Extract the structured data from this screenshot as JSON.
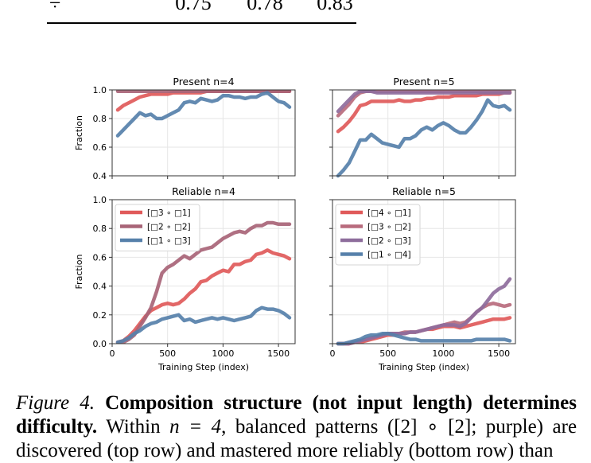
{
  "table_fragment": {
    "symbol": "÷",
    "values": [
      "0.75",
      "0.78",
      "0.83"
    ]
  },
  "chart_data": [
    {
      "type": "line",
      "title": "Present n=4",
      "ylabel": "Fraction",
      "xlabel": "",
      "ylim": [
        0.4,
        1.0
      ],
      "xlim": [
        0,
        1650
      ],
      "yticks": [
        "0.4",
        "0.6",
        "0.8",
        "1.0"
      ],
      "xticks": [],
      "grid": true,
      "series": [
        {
          "name": "[□3 ∘ □1]",
          "color": "#e05a5a",
          "x": [
            50,
            100,
            150,
            200,
            250,
            300,
            350,
            400,
            450,
            500,
            550,
            600,
            650,
            700,
            750,
            800,
            850,
            900,
            950,
            1000,
            1050,
            1100,
            1150,
            1200,
            1250,
            1300,
            1350,
            1400,
            1450,
            1500,
            1550,
            1600
          ],
          "y": [
            0.86,
            0.89,
            0.91,
            0.93,
            0.95,
            0.96,
            0.97,
            0.97,
            0.97,
            0.97,
            0.98,
            0.98,
            0.98,
            0.98,
            0.98,
            0.98,
            0.99,
            0.99,
            0.99,
            0.99,
            0.99,
            0.99,
            0.99,
            0.99,
            0.99,
            0.99,
            0.99,
            0.99,
            0.99,
            0.99,
            0.99,
            0.99
          ]
        },
        {
          "name": "[□2 ∘ □2]",
          "color": "#a86477",
          "x": [
            50,
            100,
            150,
            200,
            250,
            300,
            350,
            400,
            450,
            500,
            550,
            600,
            650,
            700,
            750,
            800,
            850,
            900,
            950,
            1000,
            1050,
            1100,
            1150,
            1200,
            1250,
            1300,
            1350,
            1400,
            1450,
            1500,
            1550,
            1600
          ],
          "y": [
            0.99,
            0.99,
            0.99,
            0.99,
            0.99,
            0.99,
            0.99,
            0.99,
            0.99,
            0.99,
            0.99,
            0.99,
            0.99,
            0.99,
            0.99,
            0.99,
            0.99,
            0.99,
            0.99,
            0.99,
            0.99,
            0.99,
            0.99,
            0.99,
            0.99,
            0.99,
            0.99,
            0.99,
            0.99,
            0.99,
            0.99,
            0.99
          ]
        },
        {
          "name": "[□1 ∘ □3]",
          "color": "#5680aa",
          "x": [
            50,
            100,
            150,
            200,
            250,
            300,
            350,
            400,
            450,
            500,
            550,
            600,
            650,
            700,
            750,
            800,
            850,
            900,
            950,
            1000,
            1050,
            1100,
            1150,
            1200,
            1250,
            1300,
            1350,
            1400,
            1450,
            1500,
            1550,
            1600
          ],
          "y": [
            0.68,
            0.72,
            0.76,
            0.8,
            0.84,
            0.82,
            0.83,
            0.8,
            0.8,
            0.82,
            0.84,
            0.86,
            0.91,
            0.92,
            0.91,
            0.94,
            0.93,
            0.92,
            0.93,
            0.96,
            0.96,
            0.95,
            0.95,
            0.94,
            0.95,
            0.95,
            0.97,
            0.98,
            0.95,
            0.92,
            0.91,
            0.88
          ]
        }
      ]
    },
    {
      "type": "line",
      "title": "Present n=5",
      "ylabel": "",
      "xlabel": "",
      "ylim": [
        0.4,
        1.0
      ],
      "xlim": [
        0,
        1650
      ],
      "yticks": [],
      "xticks": [],
      "grid": true,
      "series": [
        {
          "name": "[□4 ∘ □1]",
          "color": "#e05a5a",
          "x": [
            50,
            100,
            150,
            200,
            250,
            300,
            350,
            400,
            450,
            500,
            550,
            600,
            650,
            700,
            750,
            800,
            850,
            900,
            950,
            1000,
            1050,
            1100,
            1150,
            1200,
            1250,
            1300,
            1350,
            1400,
            1450,
            1500,
            1550,
            1600
          ],
          "y": [
            0.71,
            0.74,
            0.78,
            0.83,
            0.89,
            0.9,
            0.92,
            0.92,
            0.92,
            0.92,
            0.92,
            0.93,
            0.92,
            0.92,
            0.93,
            0.93,
            0.94,
            0.94,
            0.95,
            0.95,
            0.95,
            0.96,
            0.96,
            0.96,
            0.96,
            0.96,
            0.97,
            0.97,
            0.97,
            0.97,
            0.98,
            0.98
          ]
        },
        {
          "name": "[□3 ∘ □2]",
          "color": "#b86b7d",
          "x": [
            50,
            100,
            150,
            200,
            250,
            300,
            350,
            400,
            450,
            500,
            550,
            600,
            650,
            700,
            750,
            800,
            850,
            900,
            950,
            1000,
            1050,
            1100,
            1150,
            1200,
            1250,
            1300,
            1350,
            1400,
            1450,
            1500,
            1550,
            1600
          ],
          "y": [
            0.82,
            0.86,
            0.9,
            0.95,
            0.98,
            0.99,
            0.99,
            0.99,
            0.99,
            0.99,
            0.99,
            0.99,
            0.99,
            0.99,
            0.99,
            0.99,
            0.99,
            0.99,
            0.99,
            0.99,
            0.99,
            0.99,
            0.99,
            0.99,
            0.99,
            0.99,
            0.99,
            0.99,
            0.99,
            0.99,
            0.99,
            0.99
          ]
        },
        {
          "name": "[□2 ∘ □3]",
          "color": "#8e6d9c",
          "x": [
            50,
            100,
            150,
            200,
            250,
            300,
            350,
            400,
            450,
            500,
            550,
            600,
            650,
            700,
            750,
            800,
            850,
            900,
            950,
            1000,
            1050,
            1100,
            1150,
            1200,
            1250,
            1300,
            1350,
            1400,
            1450,
            1500,
            1550,
            1600
          ],
          "y": [
            0.85,
            0.89,
            0.93,
            0.97,
            0.99,
            0.99,
            0.99,
            0.98,
            0.98,
            0.98,
            0.98,
            0.98,
            0.98,
            0.98,
            0.98,
            0.98,
            0.98,
            0.98,
            0.98,
            0.98,
            0.98,
            0.98,
            0.98,
            0.98,
            0.98,
            0.98,
            0.98,
            0.98,
            0.98,
            0.98,
            0.98,
            0.98
          ]
        },
        {
          "name": "[□1 ∘ □4]",
          "color": "#5680aa",
          "x": [
            50,
            100,
            150,
            200,
            250,
            300,
            350,
            400,
            450,
            500,
            550,
            600,
            650,
            700,
            750,
            800,
            850,
            900,
            950,
            1000,
            1050,
            1100,
            1150,
            1200,
            1250,
            1300,
            1350,
            1400,
            1450,
            1500,
            1550,
            1600
          ],
          "y": [
            0.4,
            0.44,
            0.49,
            0.57,
            0.65,
            0.65,
            0.69,
            0.66,
            0.63,
            0.62,
            0.61,
            0.6,
            0.66,
            0.66,
            0.68,
            0.72,
            0.74,
            0.72,
            0.75,
            0.77,
            0.75,
            0.72,
            0.7,
            0.7,
            0.74,
            0.79,
            0.85,
            0.93,
            0.89,
            0.88,
            0.89,
            0.86
          ]
        }
      ]
    },
    {
      "type": "line",
      "title": "Reliable n=4",
      "ylabel": "Fraction",
      "xlabel": "Training Step (index)",
      "ylim": [
        0.0,
        1.0
      ],
      "xlim": [
        0,
        1650
      ],
      "yticks": [
        "0.0",
        "0.2",
        "0.4",
        "0.6",
        "0.8",
        "1.0"
      ],
      "xticks": [
        "0",
        "500",
        "1000",
        "1500"
      ],
      "legend": "top-left",
      "grid": true,
      "series": [
        {
          "name": "[□3 ∘ □1]",
          "color": "#e05a5a",
          "x": [
            50,
            100,
            150,
            200,
            250,
            300,
            350,
            400,
            450,
            500,
            550,
            600,
            650,
            700,
            750,
            800,
            850,
            900,
            950,
            1000,
            1050,
            1100,
            1150,
            1200,
            1250,
            1300,
            1350,
            1400,
            1450,
            1500,
            1550,
            1600
          ],
          "y": [
            0.01,
            0.02,
            0.05,
            0.09,
            0.14,
            0.19,
            0.23,
            0.25,
            0.27,
            0.28,
            0.27,
            0.28,
            0.31,
            0.35,
            0.38,
            0.43,
            0.44,
            0.47,
            0.49,
            0.51,
            0.5,
            0.55,
            0.55,
            0.57,
            0.58,
            0.62,
            0.63,
            0.65,
            0.63,
            0.62,
            0.61,
            0.59
          ]
        },
        {
          "name": "[□2 ∘ □2]",
          "color": "#a86477",
          "x": [
            50,
            100,
            150,
            200,
            250,
            300,
            350,
            400,
            450,
            500,
            550,
            600,
            650,
            700,
            750,
            800,
            850,
            900,
            950,
            1000,
            1050,
            1100,
            1150,
            1200,
            1250,
            1300,
            1350,
            1400,
            1450,
            1500,
            1550,
            1600
          ],
          "y": [
            0.01,
            0.01,
            0.03,
            0.06,
            0.12,
            0.18,
            0.25,
            0.36,
            0.49,
            0.53,
            0.55,
            0.58,
            0.61,
            0.59,
            0.62,
            0.65,
            0.66,
            0.67,
            0.7,
            0.73,
            0.75,
            0.77,
            0.78,
            0.77,
            0.8,
            0.82,
            0.82,
            0.84,
            0.84,
            0.83,
            0.83,
            0.83
          ]
        },
        {
          "name": "[□1 ∘ □3]",
          "color": "#5680aa",
          "x": [
            50,
            100,
            150,
            200,
            250,
            300,
            350,
            400,
            450,
            500,
            550,
            600,
            650,
            700,
            750,
            800,
            850,
            900,
            950,
            1000,
            1050,
            1100,
            1150,
            1200,
            1250,
            1300,
            1350,
            1400,
            1450,
            1500,
            1550,
            1600
          ],
          "y": [
            0.01,
            0.02,
            0.04,
            0.07,
            0.09,
            0.12,
            0.14,
            0.15,
            0.17,
            0.18,
            0.19,
            0.2,
            0.16,
            0.17,
            0.15,
            0.16,
            0.17,
            0.18,
            0.17,
            0.18,
            0.17,
            0.16,
            0.17,
            0.18,
            0.19,
            0.23,
            0.25,
            0.24,
            0.24,
            0.23,
            0.21,
            0.18
          ]
        }
      ]
    },
    {
      "type": "line",
      "title": "Reliable n=5",
      "ylabel": "",
      "xlabel": "Training Step (index)",
      "ylim": [
        0.0,
        1.0
      ],
      "xlim": [
        0,
        1650
      ],
      "yticks": [],
      "xticks": [
        "0",
        "500",
        "1000",
        "1500"
      ],
      "legend": "top-left",
      "grid": true,
      "series": [
        {
          "name": "[□4 ∘ □1]",
          "color": "#e05a5a",
          "x": [
            50,
            100,
            150,
            200,
            250,
            300,
            350,
            400,
            450,
            500,
            550,
            600,
            650,
            700,
            750,
            800,
            850,
            900,
            950,
            1000,
            1050,
            1100,
            1150,
            1200,
            1250,
            1300,
            1350,
            1400,
            1450,
            1500,
            1550,
            1600
          ],
          "y": [
            0.0,
            0.0,
            0.0,
            0.01,
            0.01,
            0.02,
            0.03,
            0.04,
            0.05,
            0.06,
            0.06,
            0.07,
            0.07,
            0.08,
            0.08,
            0.09,
            0.1,
            0.1,
            0.11,
            0.12,
            0.12,
            0.12,
            0.11,
            0.12,
            0.13,
            0.14,
            0.15,
            0.16,
            0.17,
            0.17,
            0.17,
            0.18
          ]
        },
        {
          "name": "[□3 ∘ □2]",
          "color": "#b86b7d",
          "x": [
            50,
            100,
            150,
            200,
            250,
            300,
            350,
            400,
            450,
            500,
            550,
            600,
            650,
            700,
            750,
            800,
            850,
            900,
            950,
            1000,
            1050,
            1100,
            1150,
            1200,
            1250,
            1300,
            1350,
            1400,
            1450,
            1500,
            1550,
            1600
          ],
          "y": [
            0.0,
            0.0,
            0.0,
            0.01,
            0.02,
            0.03,
            0.04,
            0.05,
            0.06,
            0.07,
            0.07,
            0.07,
            0.08,
            0.08,
            0.08,
            0.09,
            0.1,
            0.11,
            0.12,
            0.13,
            0.14,
            0.15,
            0.14,
            0.15,
            0.18,
            0.22,
            0.25,
            0.27,
            0.28,
            0.27,
            0.26,
            0.27
          ]
        },
        {
          "name": "[□2 ∘ □3]",
          "color": "#8e6d9c",
          "x": [
            50,
            100,
            150,
            200,
            250,
            300,
            350,
            400,
            450,
            500,
            550,
            600,
            650,
            700,
            750,
            800,
            850,
            900,
            950,
            1000,
            1050,
            1100,
            1150,
            1200,
            1250,
            1300,
            1350,
            1400,
            1450,
            1500,
            1550,
            1600
          ],
          "y": [
            0.0,
            0.0,
            0.0,
            0.01,
            0.02,
            0.03,
            0.04,
            0.05,
            0.06,
            0.07,
            0.07,
            0.07,
            0.07,
            0.08,
            0.08,
            0.09,
            0.1,
            0.11,
            0.12,
            0.13,
            0.13,
            0.13,
            0.12,
            0.14,
            0.18,
            0.22,
            0.25,
            0.3,
            0.35,
            0.38,
            0.4,
            0.45
          ]
        },
        {
          "name": "[□1 ∘ □4]",
          "color": "#5680aa",
          "x": [
            50,
            100,
            150,
            200,
            250,
            300,
            350,
            400,
            450,
            500,
            550,
            600,
            650,
            700,
            750,
            800,
            850,
            900,
            950,
            1000,
            1050,
            1100,
            1150,
            1200,
            1250,
            1300,
            1350,
            1400,
            1450,
            1500,
            1550,
            1600
          ],
          "y": [
            0.0,
            0.0,
            0.01,
            0.02,
            0.03,
            0.05,
            0.06,
            0.06,
            0.07,
            0.07,
            0.06,
            0.05,
            0.04,
            0.03,
            0.03,
            0.02,
            0.02,
            0.02,
            0.02,
            0.02,
            0.02,
            0.02,
            0.02,
            0.02,
            0.02,
            0.03,
            0.03,
            0.03,
            0.03,
            0.03,
            0.03,
            0.02
          ]
        }
      ]
    }
  ],
  "caption": {
    "label": "Figure 4.",
    "bold": "Composition structure (not input length) determines difficulty.",
    "text1": "Within",
    "math1": "n = 4",
    "text2": ", balanced patterns (",
    "math2": "[2] ∘ [2]",
    "text3": "; purple) are discovered (top row) and mastered more reliably (bottom row) than"
  }
}
